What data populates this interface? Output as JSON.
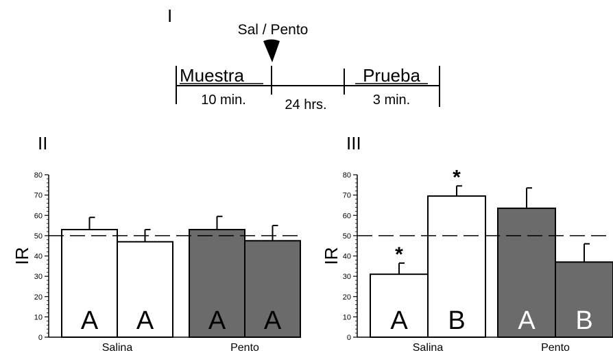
{
  "panel_labels": {
    "i": "I",
    "ii": "II",
    "iii": "III"
  },
  "timeline": {
    "injection_label": "Sal / Pento",
    "phase1_label": "Muestra",
    "phase1_duration": "10 min.",
    "delay_duration": "24 hrs.",
    "phase2_label": "Prueba",
    "phase2_duration": "3 min."
  },
  "colors": {
    "saline_fill": "#ffffff",
    "pento_fill": "#6b6b6b",
    "ink": "#000000"
  },
  "chart_data": [
    {
      "type": "bar",
      "panel": "II",
      "ylabel": "IR",
      "ylim": [
        0,
        80
      ],
      "yticks": [
        0,
        10,
        20,
        30,
        40,
        50,
        60,
        70,
        80
      ],
      "reference_line": 50,
      "groups": [
        "Salina",
        "Pento"
      ],
      "bars": [
        {
          "group": "Salina",
          "label": "A",
          "value": 53,
          "error": 6,
          "star": "",
          "fill": "white"
        },
        {
          "group": "Salina",
          "label": "A",
          "value": 47,
          "error": 6,
          "star": "",
          "fill": "white"
        },
        {
          "group": "Pento",
          "label": "A",
          "value": 53,
          "error": 6.5,
          "star": "",
          "fill": "gray"
        },
        {
          "group": "Pento",
          "label": "A",
          "value": 47.5,
          "error": 7.5,
          "star": "",
          "fill": "gray"
        }
      ]
    },
    {
      "type": "bar",
      "panel": "III",
      "ylabel": "IR",
      "ylim": [
        0,
        80
      ],
      "yticks": [
        0,
        10,
        20,
        30,
        40,
        50,
        60,
        70,
        80
      ],
      "reference_line": 50,
      "groups": [
        "Salina",
        "Pento"
      ],
      "bars": [
        {
          "group": "Salina",
          "label": "A",
          "value": 31,
          "error": 5.5,
          "star": "*",
          "fill": "white"
        },
        {
          "group": "Salina",
          "label": "B",
          "value": 69.5,
          "error": 5,
          "star": "*",
          "fill": "white"
        },
        {
          "group": "Pento",
          "label": "A",
          "value": 63.5,
          "error": 10,
          "star": "",
          "fill": "gray"
        },
        {
          "group": "Pento",
          "label": "B",
          "value": 37,
          "error": 9,
          "star": "",
          "fill": "gray"
        }
      ]
    }
  ]
}
